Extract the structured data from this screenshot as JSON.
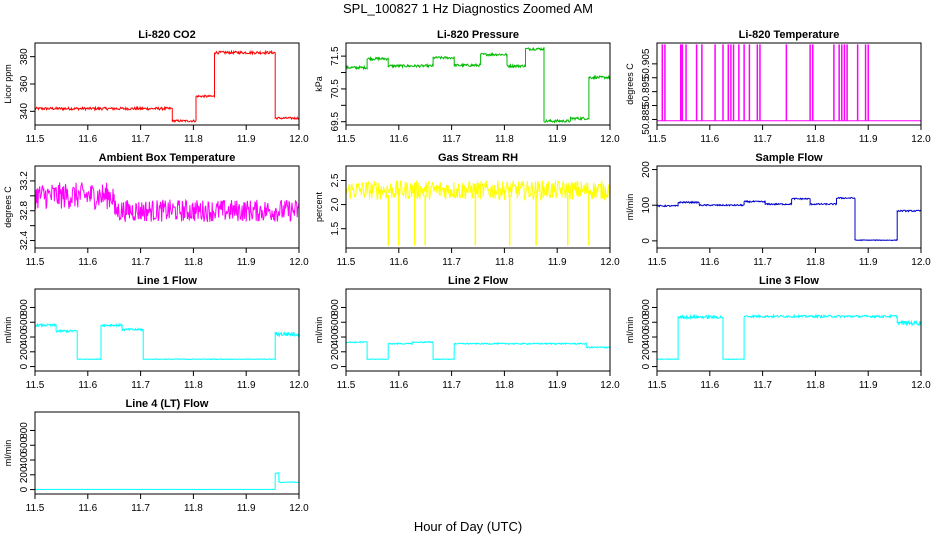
{
  "title": "SPL_100827  1 Hz Diagnostics Zoomed AM",
  "xlabel": "Hour of Day (UTC)",
  "chart_data": [
    {
      "type": "line",
      "title": "Li-820 CO2",
      "ylabel": "Licor ppm",
      "color": "#ff0000",
      "xlim": [
        11.5,
        12.0
      ],
      "ylim": [
        330,
        390
      ],
      "xticks": [
        "11.5",
        "11.6",
        "11.7",
        "11.8",
        "11.9",
        "12.0"
      ],
      "yticks": [
        "340",
        "360",
        "380"
      ],
      "series": [
        {
          "segments": [
            {
              "x0": 11.5,
              "x1": 11.76,
              "y": 342,
              "noise": 1
            },
            {
              "x0": 11.76,
              "x1": 11.805,
              "y": 333,
              "noise": 0.8
            },
            {
              "x0": 11.805,
              "x1": 11.84,
              "y": 351,
              "noise": 0.8
            },
            {
              "x0": 11.84,
              "x1": 11.955,
              "y": 383,
              "noise": 1
            },
            {
              "x0": 11.955,
              "x1": 12.0,
              "y": 335,
              "noise": 0.8
            }
          ]
        }
      ],
      "spikes": []
    },
    {
      "type": "line",
      "title": "Li-820 Pressure",
      "ylabel": "kPa",
      "color": "#00bb00",
      "xlim": [
        11.5,
        12.0
      ],
      "ylim": [
        69.4,
        71.9
      ],
      "xticks": [
        "11.5",
        "11.6",
        "11.7",
        "11.8",
        "11.9",
        "12.0"
      ],
      "yticks": [
        "69.5",
        "70.5",
        "71.5"
      ],
      "yticks_minor": [
        "70.0",
        "71.0"
      ],
      "series": [
        {
          "segments": [
            {
              "x0": 11.5,
              "x1": 11.54,
              "y": 71.15,
              "noise": 0.04
            },
            {
              "x0": 11.54,
              "x1": 11.58,
              "y": 71.42,
              "noise": 0.04
            },
            {
              "x0": 11.58,
              "x1": 11.665,
              "y": 71.2,
              "noise": 0.04
            },
            {
              "x0": 11.665,
              "x1": 11.705,
              "y": 71.45,
              "noise": 0.04
            },
            {
              "x0": 11.705,
              "x1": 11.755,
              "y": 71.22,
              "noise": 0.04
            },
            {
              "x0": 11.755,
              "x1": 11.805,
              "y": 71.55,
              "noise": 0.04
            },
            {
              "x0": 11.805,
              "x1": 11.84,
              "y": 71.2,
              "noise": 0.04
            },
            {
              "x0": 11.84,
              "x1": 11.875,
              "y": 71.72,
              "noise": 0.04
            },
            {
              "x0": 11.875,
              "x1": 11.925,
              "y": 69.52,
              "noise": 0.04
            },
            {
              "x0": 11.925,
              "x1": 11.96,
              "y": 69.6,
              "noise": 0.04
            },
            {
              "x0": 11.96,
              "x1": 12.0,
              "y": 70.85,
              "noise": 0.04
            }
          ]
        }
      ],
      "spikes": []
    },
    {
      "type": "line",
      "title": "Li-820 Temperature",
      "ylabel": "degrees C",
      "color": "#ff00ff",
      "xlim": [
        11.5,
        12.0
      ],
      "ylim": [
        50.883,
        50.9125
      ],
      "xticks": [
        "11.5",
        "11.6",
        "11.7",
        "11.8",
        "11.9",
        "12.0"
      ],
      "yticks": [
        "50.885",
        "50.895",
        "50.905"
      ],
      "yticks_minor": [
        "50.890",
        "50.900"
      ],
      "series": [
        {
          "segments": [
            {
              "x0": 11.5,
              "x1": 12.0,
              "y": 50.8845,
              "noise": 0
            }
          ]
        }
      ],
      "spikes": {
        "base": 50.8845,
        "top": 50.912,
        "x": [
          11.51,
          11.515,
          11.545,
          11.548,
          11.555,
          11.575,
          11.585,
          11.61,
          11.625,
          11.635,
          11.64,
          11.645,
          11.655,
          11.665,
          11.675,
          11.69,
          11.695,
          11.745,
          11.79,
          11.795,
          11.835,
          11.845,
          11.85,
          11.855,
          11.86,
          11.88,
          11.895,
          11.9
        ]
      }
    },
    {
      "type": "line",
      "title": "Ambient Box Temperature",
      "ylabel": "degrees C",
      "color": "#ff00ff",
      "xlim": [
        11.5,
        12.0
      ],
      "ylim": [
        32.3,
        33.4
      ],
      "xticks": [
        "11.5",
        "11.6",
        "11.7",
        "11.8",
        "11.9",
        "12.0"
      ],
      "yticks": [
        "32.4",
        "32.8",
        "33.2"
      ],
      "yticks_minor": [
        "32.6",
        "33.0"
      ],
      "series": [
        {
          "segments": [
            {
              "x0": 11.5,
              "x1": 11.65,
              "y": 33.0,
              "noise": 0.18
            },
            {
              "x0": 11.65,
              "x1": 12.0,
              "y": 32.8,
              "noise": 0.15
            }
          ]
        }
      ],
      "spikes": []
    },
    {
      "type": "line",
      "title": "Gas Stream RH",
      "ylabel": "percent",
      "color": "#ffff00",
      "xlim": [
        11.5,
        12.0
      ],
      "ylim": [
        1.1,
        2.8
      ],
      "xticks": [
        "11.5",
        "11.6",
        "11.7",
        "11.8",
        "11.9",
        "12.0"
      ],
      "yticks": [
        "1.5",
        "2.0",
        "2.5"
      ],
      "series": [
        {
          "segments": [
            {
              "x0": 11.5,
              "x1": 12.0,
              "y": 2.3,
              "noise": 0.2
            }
          ]
        }
      ],
      "spikes": {
        "base": 2.2,
        "top": 1.15,
        "x": [
          11.58,
          11.6,
          11.63,
          11.65,
          11.745,
          11.81,
          11.86,
          11.92,
          11.96
        ]
      }
    },
    {
      "type": "line",
      "title": "Sample Flow",
      "ylabel": "ml/min",
      "color": "#0000cc",
      "xlim": [
        11.5,
        12.0
      ],
      "ylim": [
        -20,
        210
      ],
      "xticks": [
        "11.5",
        "11.6",
        "11.7",
        "11.8",
        "11.9",
        "12.0"
      ],
      "yticks": [
        "0",
        "100",
        "200"
      ],
      "series": [
        {
          "segments": [
            {
              "x0": 11.5,
              "x1": 11.54,
              "y": 98,
              "noise": 2
            },
            {
              "x0": 11.54,
              "x1": 11.58,
              "y": 108,
              "noise": 2
            },
            {
              "x0": 11.58,
              "x1": 11.665,
              "y": 100,
              "noise": 2
            },
            {
              "x0": 11.665,
              "x1": 11.705,
              "y": 110,
              "noise": 2
            },
            {
              "x0": 11.705,
              "x1": 11.755,
              "y": 103,
              "noise": 2
            },
            {
              "x0": 11.755,
              "x1": 11.79,
              "y": 118,
              "noise": 2
            },
            {
              "x0": 11.79,
              "x1": 11.84,
              "y": 103,
              "noise": 2
            },
            {
              "x0": 11.84,
              "x1": 11.875,
              "y": 120,
              "noise": 2
            },
            {
              "x0": 11.875,
              "x1": 11.955,
              "y": 2,
              "noise": 1
            },
            {
              "x0": 11.955,
              "x1": 12.0,
              "y": 84,
              "noise": 2
            }
          ]
        }
      ],
      "spikes": []
    },
    {
      "type": "line",
      "title": "Line 1 Flow",
      "ylabel": "ml/min",
      "color": "#00ffff",
      "xlim": [
        11.5,
        12.0
      ],
      "ylim": [
        -60,
        1050
      ],
      "xticks": [
        "11.5",
        "11.6",
        "11.7",
        "11.8",
        "11.9",
        "12.0"
      ],
      "yticks": [
        "0",
        "200",
        "400",
        "600",
        "800"
      ],
      "series": [
        {
          "segments": [
            {
              "x0": 11.5,
              "x1": 11.54,
              "y": 560,
              "noise": 15
            },
            {
              "x0": 11.54,
              "x1": 11.58,
              "y": 480,
              "noise": 15
            },
            {
              "x0": 11.58,
              "x1": 11.625,
              "y": 100,
              "noise": 4
            },
            {
              "x0": 11.625,
              "x1": 11.665,
              "y": 560,
              "noise": 15
            },
            {
              "x0": 11.665,
              "x1": 11.705,
              "y": 500,
              "noise": 15
            },
            {
              "x0": 11.705,
              "x1": 11.955,
              "y": 100,
              "noise": 4
            },
            {
              "x0": 11.955,
              "x1": 12.0,
              "y": 440,
              "noise": 30
            }
          ]
        }
      ],
      "spikes": []
    },
    {
      "type": "line",
      "title": "Line 2 Flow",
      "ylabel": "ml/min",
      "color": "#00ffff",
      "xlim": [
        11.5,
        12.0
      ],
      "ylim": [
        -60,
        1050
      ],
      "xticks": [
        "11.5",
        "11.6",
        "11.7",
        "11.8",
        "11.9",
        "12.0"
      ],
      "yticks": [
        "0",
        "200",
        "400",
        "600",
        "800"
      ],
      "series": [
        {
          "segments": [
            {
              "x0": 11.5,
              "x1": 11.54,
              "y": 330,
              "noise": 8
            },
            {
              "x0": 11.54,
              "x1": 11.58,
              "y": 100,
              "noise": 4
            },
            {
              "x0": 11.58,
              "x1": 11.625,
              "y": 310,
              "noise": 8
            },
            {
              "x0": 11.625,
              "x1": 11.665,
              "y": 330,
              "noise": 8
            },
            {
              "x0": 11.665,
              "x1": 11.705,
              "y": 100,
              "noise": 4
            },
            {
              "x0": 11.705,
              "x1": 11.955,
              "y": 310,
              "noise": 8
            },
            {
              "x0": 11.955,
              "x1": 12.0,
              "y": 260,
              "noise": 10
            }
          ]
        }
      ],
      "spikes": []
    },
    {
      "type": "line",
      "title": "Line 3 Flow",
      "ylabel": "ml/min",
      "color": "#00ffff",
      "xlim": [
        11.5,
        12.0
      ],
      "ylim": [
        -60,
        1050
      ],
      "xticks": [
        "11.5",
        "11.6",
        "11.7",
        "11.8",
        "11.9",
        "12.0"
      ],
      "yticks": [
        "0",
        "200",
        "400",
        "600",
        "800"
      ],
      "series": [
        {
          "segments": [
            {
              "x0": 11.5,
              "x1": 11.54,
              "y": 100,
              "noise": 4
            },
            {
              "x0": 11.54,
              "x1": 11.625,
              "y": 670,
              "noise": 20
            },
            {
              "x0": 11.625,
              "x1": 11.665,
              "y": 100,
              "noise": 4
            },
            {
              "x0": 11.665,
              "x1": 11.955,
              "y": 680,
              "noise": 15
            },
            {
              "x0": 11.955,
              "x1": 12.0,
              "y": 590,
              "noise": 30
            }
          ]
        }
      ],
      "spikes": []
    },
    {
      "type": "line",
      "title": "Line 4 (LT) Flow",
      "ylabel": "ml/min",
      "color": "#00ffff",
      "xlim": [
        11.5,
        12.0
      ],
      "ylim": [
        -60,
        1050
      ],
      "xticks": [
        "11.5",
        "11.6",
        "11.7",
        "11.8",
        "11.9",
        "12.0"
      ],
      "yticks": [
        "0",
        "200",
        "400",
        "600",
        "800"
      ],
      "series": [
        {
          "segments": [
            {
              "x0": 11.5,
              "x1": 11.955,
              "y": 2,
              "noise": 1
            },
            {
              "x0": 11.955,
              "x1": 11.962,
              "y": 220,
              "noise": 8
            },
            {
              "x0": 11.962,
              "x1": 12.0,
              "y": 100,
              "noise": 5
            }
          ]
        }
      ],
      "spikes": []
    }
  ]
}
